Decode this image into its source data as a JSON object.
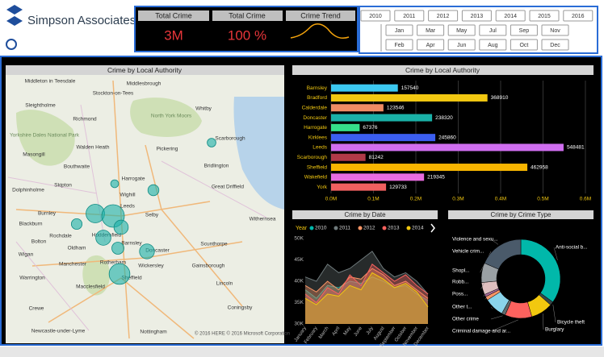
{
  "header": {
    "brand": "Simpson Associates"
  },
  "kpis": [
    {
      "title": "Total Crime",
      "value": "3M"
    },
    {
      "title": "Total Crime",
      "value": "100 %"
    },
    {
      "title": "Crime Trend"
    }
  ],
  "slicers": {
    "years": [
      "2010",
      "2011",
      "2012",
      "2013",
      "2014",
      "2015",
      "2016"
    ],
    "months": [
      "Jan",
      "Feb",
      "Mar",
      "Apr",
      "May",
      "Jun",
      "Jul",
      "Aug",
      "Sep",
      "Oct",
      "Nov",
      "Dec"
    ]
  },
  "map": {
    "title": "Crime by Local Authority",
    "places": [
      "Middleton in Teesdale",
      "Stockton-on-Tees",
      "Middlesbrough",
      "Sleightholme",
      "Richmond",
      "Whitby",
      "Yorkshire Dales National Park",
      "North York Moors",
      "Masongill",
      "Walden Heath",
      "Pickering",
      "Scarborough",
      "Bouthwaite",
      "Bridlington",
      "Skipton",
      "Harrogate",
      "Dolphinholme",
      "Wighill",
      "Great Driffield",
      "Burnley",
      "Blackburn",
      "Leeds",
      "Selby",
      "Withernsea",
      "Rochdale",
      "Huddersfield",
      "Bolton",
      "Oldham",
      "Barnsley",
      "Doncaster",
      "Scunthorpe",
      "Wigan",
      "Manchester",
      "Rotherham",
      "Wickersley",
      "Sheffield",
      "Gainsborough",
      "Warrington",
      "Macclesfield",
      "Lincoln",
      "Crewe",
      "Coningsby",
      "Newcastle-under-Lyme",
      "Nottingham"
    ],
    "attribution": "© 2016 HERE © 2016 Microsoft Corporation"
  },
  "chart_data": [
    {
      "type": "bar",
      "title": "Crime by Local Authority",
      "categories": [
        "Barnsley",
        "Bradford",
        "Calderdale",
        "Doncaster",
        "Harrogate",
        "Kirklees",
        "Leeds",
        "Scarborough",
        "Sheffield",
        "Wakefield",
        "York"
      ],
      "values": [
        157540,
        368910,
        123546,
        238320,
        67376,
        245860,
        548481,
        81242,
        462958,
        219345,
        129733
      ],
      "colors": [
        "#3cc8f0",
        "#f2c811",
        "#f08c64",
        "#1ab1a8",
        "#35e08a",
        "#3b5ef0",
        "#d06ef0",
        "#b03a48",
        "#f7b500",
        "#e86ce0",
        "#f06060"
      ],
      "xlim": [
        0,
        600000
      ],
      "xticks": [
        {
          "value": 0,
          "label": "0.0M"
        },
        {
          "value": 100000,
          "label": "0.1M"
        },
        {
          "value": 200000,
          "label": "0.2M"
        },
        {
          "value": 300000,
          "label": "0.3M"
        },
        {
          "value": 400000,
          "label": "0.4M"
        },
        {
          "value": 500000,
          "label": "0.5M"
        },
        {
          "value": 600000,
          "label": "0.6M"
        }
      ],
      "grid": true
    },
    {
      "type": "area",
      "title": "Crime by Date",
      "legend_title": "Year",
      "categories": [
        "January",
        "February",
        "March",
        "April",
        "May",
        "June",
        "July",
        "August",
        "September",
        "October",
        "November",
        "December"
      ],
      "series": [
        {
          "name": "2010",
          "color": "#01b8aa",
          "values": [
            38000,
            36000,
            39000,
            38500,
            40000,
            39500,
            41000,
            40000,
            38500,
            39000,
            37000,
            35500
          ]
        },
        {
          "name": "2011",
          "color": "#6f7a7c",
          "values": [
            41000,
            40000,
            44000,
            42000,
            43000,
            45000,
            47000,
            43000,
            41000,
            42000,
            40000,
            37000
          ]
        },
        {
          "name": "2012",
          "color": "#fe9666",
          "values": [
            39000,
            37500,
            40000,
            38000,
            41000,
            40500,
            43000,
            41500,
            39000,
            40000,
            38000,
            36000
          ]
        },
        {
          "name": "2013",
          "color": "#fd625e",
          "values": [
            37000,
            35000,
            38500,
            37000,
            41500,
            39000,
            44000,
            42000,
            40000,
            41500,
            39000,
            37000
          ]
        },
        {
          "name": "2014",
          "color": "#f2c80f",
          "values": [
            36000,
            34500,
            37000,
            36500,
            39000,
            38000,
            42000,
            40500,
            38500,
            39500,
            37500,
            34000
          ]
        }
      ],
      "ylim": [
        30000,
        50000
      ],
      "yticks": [
        {
          "value": 30000,
          "label": "30K"
        },
        {
          "value": 35000,
          "label": "35K"
        },
        {
          "value": 40000,
          "label": "40K"
        },
        {
          "value": 45000,
          "label": "45K"
        },
        {
          "value": 50000,
          "label": "50K"
        }
      ]
    },
    {
      "type": "pie",
      "title": "Crime by Crime Type",
      "categories": [
        "Anti-social b...",
        "Bicycle theft",
        "Burglary",
        "Criminal damage and ar...",
        "Other crime",
        "Other t...",
        "Poss...",
        "Robb...",
        "Shopl...",
        "Vehicle crim...",
        "Violence and sexu..."
      ],
      "values": [
        35,
        1.5,
        9,
        11,
        1.5,
        8,
        1.5,
        1,
        5,
        8,
        18.5
      ],
      "colors": [
        "#01b8aa",
        "#374649",
        "#f2c80f",
        "#fd625e",
        "#5f6b6d",
        "#8ad4eb",
        "#fe9666",
        "#a66999",
        "#dfbfbf",
        "#9aa0a4",
        "#4a5a6a"
      ]
    }
  ]
}
